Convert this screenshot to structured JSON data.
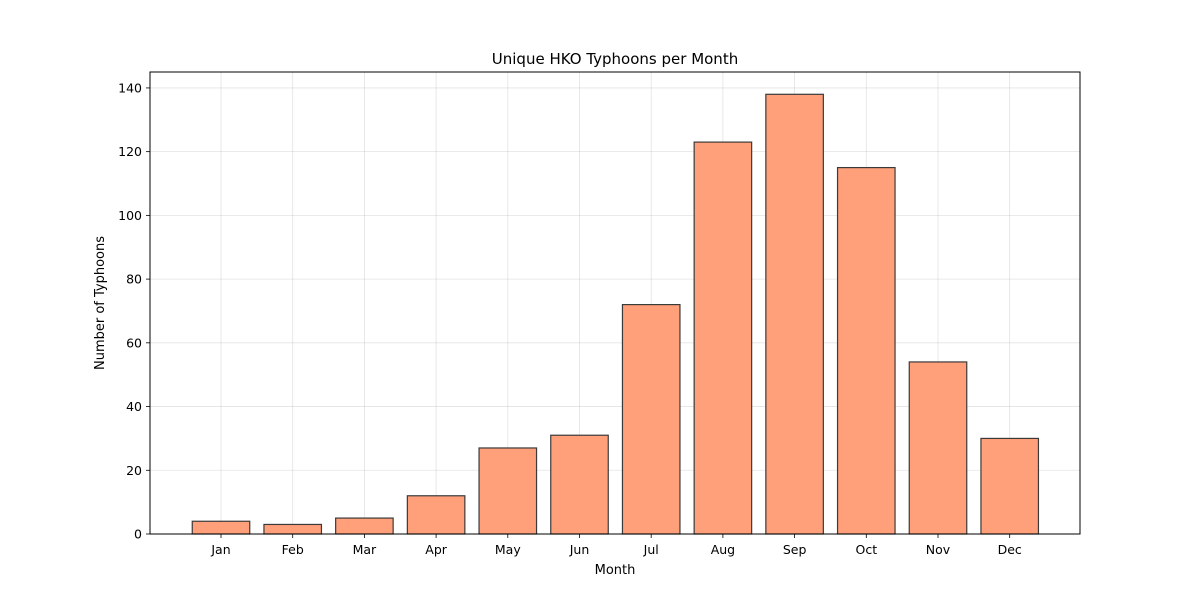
{
  "chart_data": {
    "type": "bar",
    "title": "Unique HKO Typhoons per Month",
    "xlabel": "Month",
    "ylabel": "Number of Typhoons",
    "categories": [
      "Jan",
      "Feb",
      "Mar",
      "Apr",
      "May",
      "Jun",
      "Jul",
      "Aug",
      "Sep",
      "Oct",
      "Nov",
      "Dec"
    ],
    "values": [
      4,
      3,
      5,
      12,
      27,
      31,
      72,
      123,
      138,
      115,
      54,
      30
    ],
    "ylim": [
      0,
      145
    ],
    "yticks": [
      0,
      20,
      40,
      60,
      80,
      100,
      120,
      140
    ],
    "grid": true,
    "legend": "none",
    "bar_color": "#ffa07a",
    "bar_edge_color": "#3a3a3a"
  }
}
